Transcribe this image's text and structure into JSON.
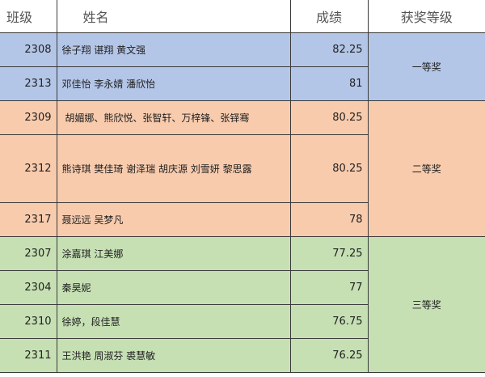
{
  "headers": {
    "class": "班级",
    "names": "姓名",
    "score": "成绩",
    "award": "获奖等级"
  },
  "colors": {
    "first": "#b4c6e7",
    "second": "#f8cbad",
    "third": "#c6e0b4"
  },
  "rows": [
    {
      "class": "2308",
      "names": "徐子翔  谌翔  黄文强",
      "score": "82.25"
    },
    {
      "class": "2313",
      "names": "邓佳怡  李永婧  潘欣怡",
      "score": "81"
    },
    {
      "class": "2309",
      "names": " 胡媚娜、熊欣悦、张智轩、万梓锋、张铎骞",
      "score": "80.25"
    },
    {
      "class": "2312",
      "names": "熊诗琪  樊佳琦  谢泽瑞  胡庆源  刘雪妍  黎思露",
      "score": "80.25"
    },
    {
      "class": "2317",
      "names": "聂远远  吴梦凡",
      "score": "78"
    },
    {
      "class": "2307",
      "names": "涂嘉琪  江美娜",
      "score": "77.25"
    },
    {
      "class": "2304",
      "names": "秦昊妮",
      "score": "77"
    },
    {
      "class": "2310",
      "names": "徐婷，段佳慧",
      "score": "76.75"
    },
    {
      "class": "2311",
      "names": "王洪艳  周淑芬  裘慧敏",
      "score": "76.25"
    }
  ],
  "awards": {
    "first": "一等奖",
    "second": "二等奖",
    "third": "三等奖"
  }
}
